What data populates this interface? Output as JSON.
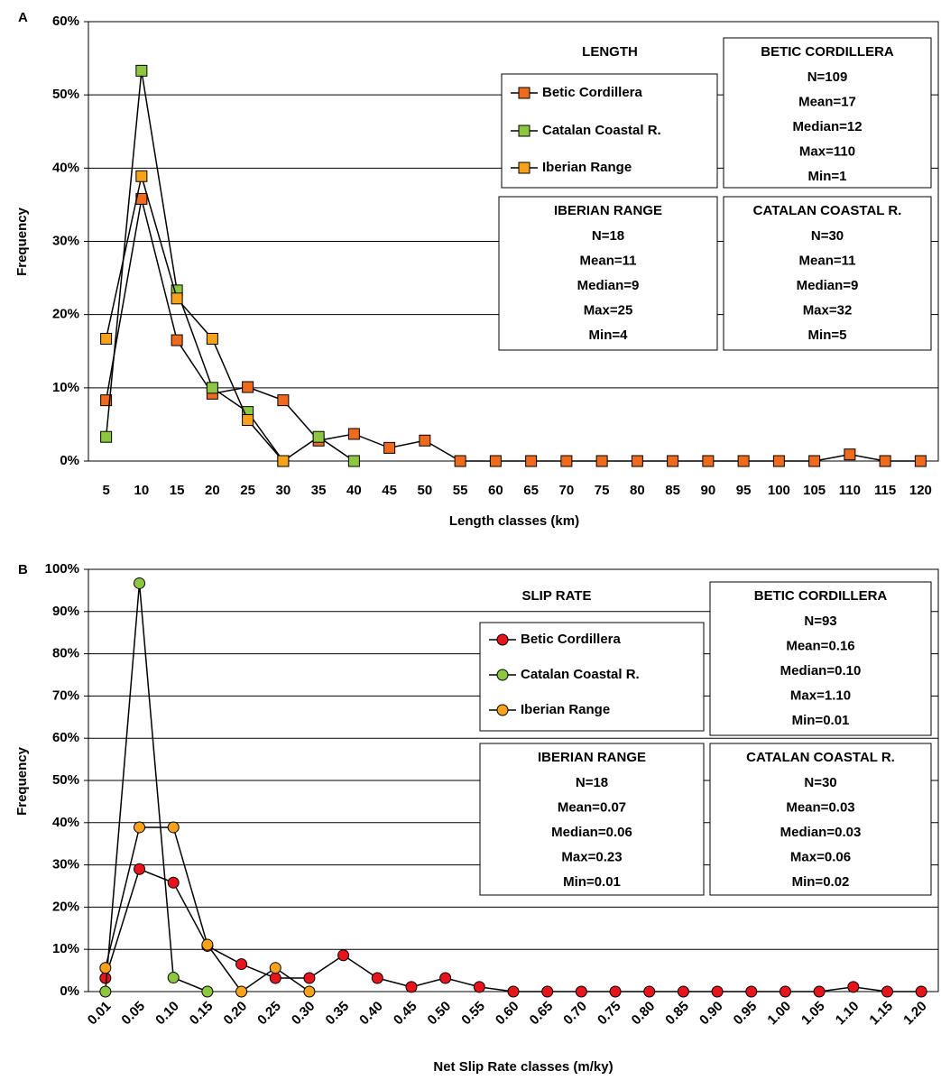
{
  "chart_data": [
    {
      "type": "line",
      "panel_label": "A",
      "title": "LENGTH",
      "x_label": "Length classes (km)",
      "y_label": "Frequency",
      "categories": [
        "5",
        "10",
        "15",
        "20",
        "25",
        "30",
        "35",
        "40",
        "45",
        "50",
        "55",
        "60",
        "65",
        "70",
        "75",
        "80",
        "85",
        "90",
        "95",
        "100",
        "105",
        "110",
        "115",
        "120"
      ],
      "series": [
        {
          "name": "Betic Cordillera",
          "color": "#ee6a1c",
          "marker": "square",
          "values": [
            8.3,
            35.8,
            16.5,
            9.2,
            10.1,
            8.3,
            2.8,
            3.7,
            1.8,
            2.8,
            0,
            0,
            0,
            0,
            0,
            0,
            0,
            0,
            0,
            0,
            0,
            0.9,
            0,
            0
          ]
        },
        {
          "name": "Catalan Coastal R.",
          "color": "#8dc63f",
          "marker": "square",
          "values": [
            3.3,
            53.3,
            23.3,
            10,
            6.7,
            0,
            3.3,
            0,
            null,
            null,
            null,
            null,
            null,
            null,
            null,
            null,
            null,
            null,
            null,
            null,
            null,
            null,
            null,
            null
          ]
        },
        {
          "name": "Iberian Range",
          "color": "#f7a21b",
          "marker": "square",
          "values": [
            16.7,
            38.9,
            22.2,
            16.7,
            5.6,
            0,
            null,
            null,
            null,
            null,
            null,
            null,
            null,
            null,
            null,
            null,
            null,
            null,
            null,
            null,
            null,
            null,
            null,
            null
          ]
        }
      ],
      "ylim": [
        0,
        60
      ],
      "yticks": [
        {
          "value": 0,
          "label": "0%"
        },
        {
          "value": 10,
          "label": "10%"
        },
        {
          "value": 20,
          "label": "20%"
        },
        {
          "value": 30,
          "label": "30%"
        },
        {
          "value": 40,
          "label": "40%"
        },
        {
          "value": 50,
          "label": "50%"
        },
        {
          "value": 60,
          "label": "60%"
        }
      ],
      "grid": true,
      "stats_boxes": [
        {
          "title": "BETIC CORDILLERA",
          "lines": [
            "N=109",
            "Mean=17",
            "Median=12",
            "Max=110",
            "Min=1"
          ]
        },
        {
          "title": "IBERIAN RANGE",
          "lines": [
            "N=18",
            "Mean=11",
            "Median=9",
            "Max=25",
            "Min=4"
          ]
        },
        {
          "title": "CATALAN COASTAL R.",
          "lines": [
            "N=30",
            "Mean=11",
            "Median=9",
            "Max=32",
            "Min=5"
          ]
        }
      ]
    },
    {
      "type": "line",
      "panel_label": "B",
      "title": "SLIP RATE",
      "x_label": "Net Slip Rate classes (m/ky)",
      "y_label": "Frequency",
      "categories": [
        "0.01",
        "0.05",
        "0.10",
        "0.15",
        "0.20",
        "0.25",
        "0.30",
        "0.35",
        "0.40",
        "0.45",
        "0.50",
        "0.55",
        "0.60",
        "0.65",
        "0.70",
        "0.75",
        "0.80",
        "0.85",
        "0.90",
        "0.95",
        "1.00",
        "1.05",
        "1.10",
        "1.15",
        "1.20"
      ],
      "series": [
        {
          "name": "Betic Cordillera",
          "color": "#e8141b",
          "marker": "circle",
          "values": [
            3.2,
            29,
            25.8,
            10.8,
            6.5,
            3.2,
            3.2,
            8.6,
            3.2,
            1.1,
            3.2,
            1.1,
            0,
            0,
            0,
            0,
            0,
            0,
            0,
            0,
            0,
            0,
            1.1,
            0,
            0
          ]
        },
        {
          "name": "Catalan Coastal R.",
          "color": "#8dc63f",
          "marker": "circle",
          "values": [
            0,
            96.7,
            3.3,
            0,
            null,
            null,
            null,
            null,
            null,
            null,
            null,
            null,
            null,
            null,
            null,
            null,
            null,
            null,
            null,
            null,
            null,
            null,
            null,
            null,
            null
          ]
        },
        {
          "name": "Iberian Range",
          "color": "#f7a21b",
          "marker": "circle",
          "values": [
            5.6,
            38.9,
            38.9,
            11.1,
            0,
            5.6,
            0,
            null,
            null,
            null,
            null,
            null,
            null,
            null,
            null,
            null,
            null,
            null,
            null,
            null,
            null,
            null,
            null,
            null,
            null
          ]
        }
      ],
      "ylim": [
        0,
        100
      ],
      "yticks": [
        {
          "value": 0,
          "label": "0%"
        },
        {
          "value": 10,
          "label": "10%"
        },
        {
          "value": 20,
          "label": "20%"
        },
        {
          "value": 30,
          "label": "30%"
        },
        {
          "value": 40,
          "label": "40%"
        },
        {
          "value": 50,
          "label": "50%"
        },
        {
          "value": 60,
          "label": "60%"
        },
        {
          "value": 70,
          "label": "70%"
        },
        {
          "value": 80,
          "label": "80%"
        },
        {
          "value": 90,
          "label": "90%"
        },
        {
          "value": 100,
          "label": "100%"
        }
      ],
      "grid": true,
      "stats_boxes": [
        {
          "title": "BETIC CORDILLERA",
          "lines": [
            "N=93",
            "Mean=0.16",
            "Median=0.10",
            "Max=1.10",
            "Min=0.01"
          ]
        },
        {
          "title": "IBERIAN RANGE",
          "lines": [
            "N=18",
            "Mean=0.07",
            "Median=0.06",
            "Max=0.23",
            "Min=0.01"
          ]
        },
        {
          "title": "CATALAN COASTAL R.",
          "lines": [
            "N=30",
            "Mean=0.03",
            "Median=0.03",
            "Max=0.06",
            "Min=0.02"
          ]
        }
      ]
    }
  ]
}
